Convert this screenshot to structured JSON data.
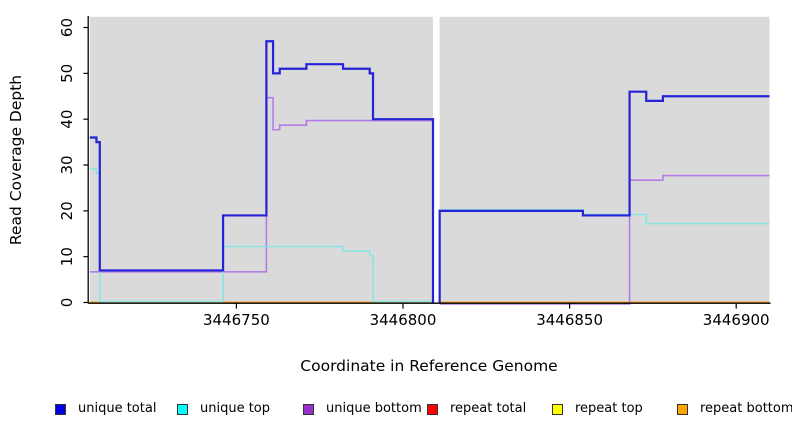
{
  "chart_data": {
    "type": "line",
    "subtype": "step-coverage",
    "title": "",
    "xlabel": "Coordinate in Reference Genome",
    "ylabel": "Read Coverage Depth",
    "xlim": [
      3446706,
      3446910
    ],
    "ylim": [
      0,
      62
    ],
    "x_ticks": [
      3446750,
      3446800,
      3446850,
      3446900
    ],
    "y_ticks": [
      0,
      10,
      20,
      30,
      40,
      50,
      60
    ],
    "grid": false,
    "plot_bg_color": "#dadada",
    "gap_no_data": [
      3446809,
      3446811
    ],
    "legend_position": "bottom",
    "legend": [
      {
        "label": "unique total",
        "color": "#0000e6"
      },
      {
        "label": "unique top",
        "color": "#00ffff"
      },
      {
        "label": "unique bottom",
        "color": "#9932cc"
      },
      {
        "label": "repeat total",
        "color": "#ff0000"
      },
      {
        "label": "repeat top",
        "color": "#ffff00"
      },
      {
        "label": "repeat bottom",
        "color": "#ffa500"
      }
    ],
    "series_colors": {
      "unique_total": "#2522d8",
      "unique_top": "#8ae4df",
      "unique_bottom": "#b27de6",
      "repeat_total": "#d42222",
      "repeat_top": "#ecec22",
      "repeat_bottom": "#ff9d1e"
    },
    "regions": [
      {
        "x_start": 3446706,
        "x_end": 3446809,
        "start_from_zero": false,
        "end_at_zero": true,
        "series": {
          "unique_total": [
            [
              3446706,
              36
            ],
            [
              3446708,
              35
            ],
            [
              3446709,
              7
            ],
            [
              3446746,
              19
            ],
            [
              3446759,
              57
            ],
            [
              3446761,
              50
            ],
            [
              3446763,
              51
            ],
            [
              3446771,
              52
            ],
            [
              3446782,
              51
            ],
            [
              3446790,
              50
            ],
            [
              3446791,
              40
            ]
          ],
          "unique_top": [
            [
              3446706,
              29
            ],
            [
              3446708,
              28
            ],
            [
              3446709,
              0
            ],
            [
              3446746,
              12
            ],
            [
              3446782,
              11
            ],
            [
              3446790,
              10
            ],
            [
              3446791,
              0
            ]
          ],
          "unique_bottom": [
            [
              3446706,
              7
            ],
            [
              3446759,
              45
            ],
            [
              3446761,
              38
            ],
            [
              3446763,
              39
            ],
            [
              3446771,
              40
            ]
          ],
          "repeat_total": [
            [
              3446706,
              0
            ]
          ],
          "repeat_top": [
            [
              3446706,
              0
            ]
          ],
          "repeat_bottom": [
            [
              3446706,
              0
            ]
          ]
        }
      },
      {
        "x_start": 3446811,
        "x_end": 3446910,
        "start_from_zero": true,
        "end_at_zero": false,
        "series": {
          "unique_total": [
            [
              3446811,
              20
            ],
            [
              3446854,
              19
            ],
            [
              3446868,
              46
            ],
            [
              3446873,
              44
            ],
            [
              3446878,
              45
            ]
          ],
          "unique_top": [
            [
              3446811,
              20
            ],
            [
              3446854,
              19
            ],
            [
              3446873,
              17
            ]
          ],
          "unique_bottom": [
            [
              3446811,
              0
            ],
            [
              3446868,
              27
            ],
            [
              3446878,
              28
            ]
          ],
          "repeat_total": [
            [
              3446811,
              0
            ]
          ],
          "repeat_top": [
            [
              3446811,
              0
            ]
          ],
          "repeat_bottom": [
            [
              3446811,
              0
            ]
          ]
        }
      }
    ]
  }
}
